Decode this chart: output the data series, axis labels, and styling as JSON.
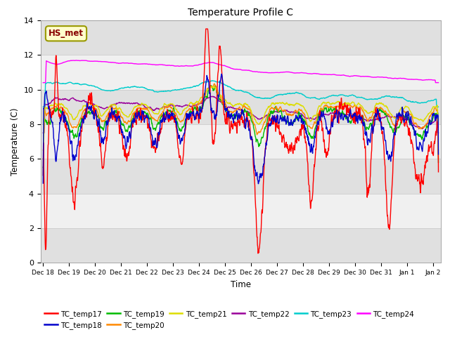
{
  "title": "Temperature Profile C",
  "xlabel": "Time",
  "ylabel": "Temperature (C)",
  "ylim": [
    0,
    14
  ],
  "x_tick_labels": [
    "Dec 18",
    "Dec 19",
    "Dec 20",
    "Dec 21",
    "Dec 22",
    "Dec 23",
    "Dec 24",
    "Dec 25",
    "Dec 26",
    "Dec 27",
    "Dec 28",
    "Dec 29",
    "Dec 30",
    "Dec 31",
    "Jan 1",
    "Jan 2"
  ],
  "series_colors": {
    "TC_temp17": "#ff0000",
    "TC_temp18": "#0000cc",
    "TC_temp19": "#00bb00",
    "TC_temp20": "#ff8800",
    "TC_temp21": "#dddd00",
    "TC_temp22": "#990099",
    "TC_temp23": "#00cccc",
    "TC_temp24": "#ff00ff"
  },
  "legend_label": "HS_met",
  "legend_box_facecolor": "#ffffcc",
  "legend_box_edgecolor": "#999900",
  "bg_dark": "#e0e0e0",
  "bg_light": "#f0f0f0",
  "plot_bg": "#f0f0f0"
}
